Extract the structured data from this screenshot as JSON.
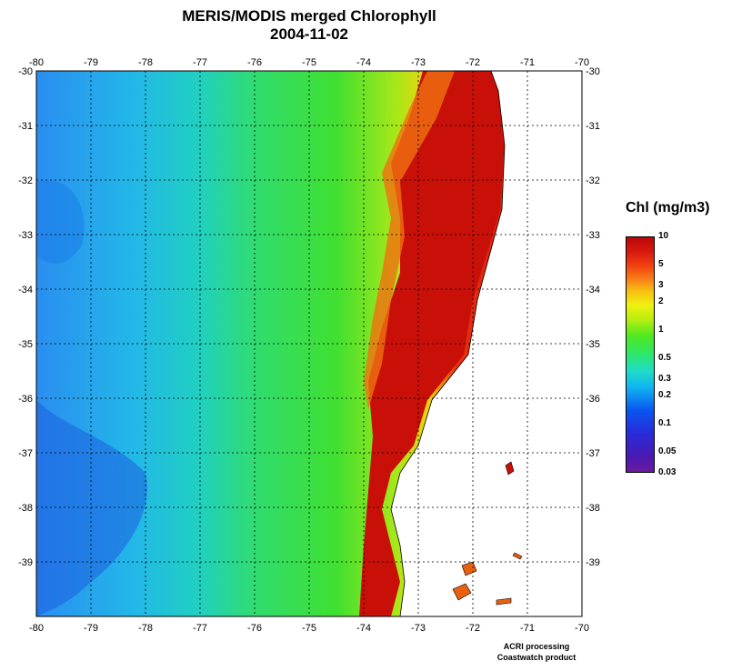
{
  "title": {
    "line1": "MERIS/MODIS merged Chlorophyll",
    "line2": "2004-11-02"
  },
  "axes": {
    "lon_ticks": [
      "-80",
      "-79",
      "-78",
      "-77",
      "-76",
      "-75",
      "-74",
      "-73",
      "-72",
      "-71",
      "-70"
    ],
    "lat_ticks": [
      "-30",
      "-31",
      "-32",
      "-33",
      "-34",
      "-35",
      "-36",
      "-37",
      "-38",
      "-39"
    ]
  },
  "legend": {
    "title": "Chl (mg/m3)",
    "labels": [
      "10",
      "5",
      "3",
      "2",
      "1",
      "0.5",
      "0.3",
      "0.2",
      "0.1",
      "0.05",
      "0.03"
    ]
  },
  "credit": {
    "line1": "ACRI processing",
    "line2": "Coastwatch product"
  },
  "colors": {
    "ocean_low": "#1e8cf0",
    "ocean_mid": "#20e060",
    "ocean_high": "#c00808",
    "land": "#ffffff"
  }
}
